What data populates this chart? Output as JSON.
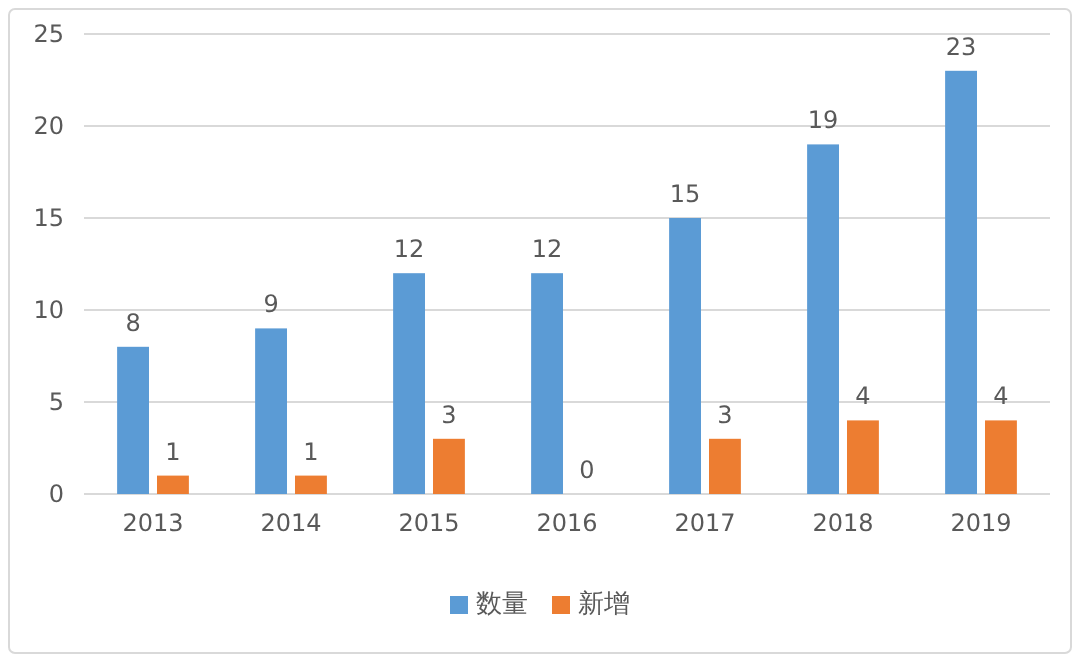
{
  "chart_data": {
    "type": "bar",
    "categories": [
      "2013",
      "2014",
      "2015",
      "2016",
      "2017",
      "2018",
      "2019"
    ],
    "series": [
      {
        "name": "数量",
        "color": "#5b9bd5",
        "values": [
          8,
          9,
          12,
          12,
          15,
          19,
          23
        ]
      },
      {
        "name": "新增",
        "color": "#ed7d31",
        "values": [
          1,
          1,
          3,
          0,
          3,
          4,
          4
        ]
      }
    ],
    "ylim": [
      0,
      25
    ],
    "yticks": [
      0,
      5,
      10,
      15,
      20,
      25
    ],
    "grid": "y",
    "legend": "bottom",
    "data_labels": true
  }
}
